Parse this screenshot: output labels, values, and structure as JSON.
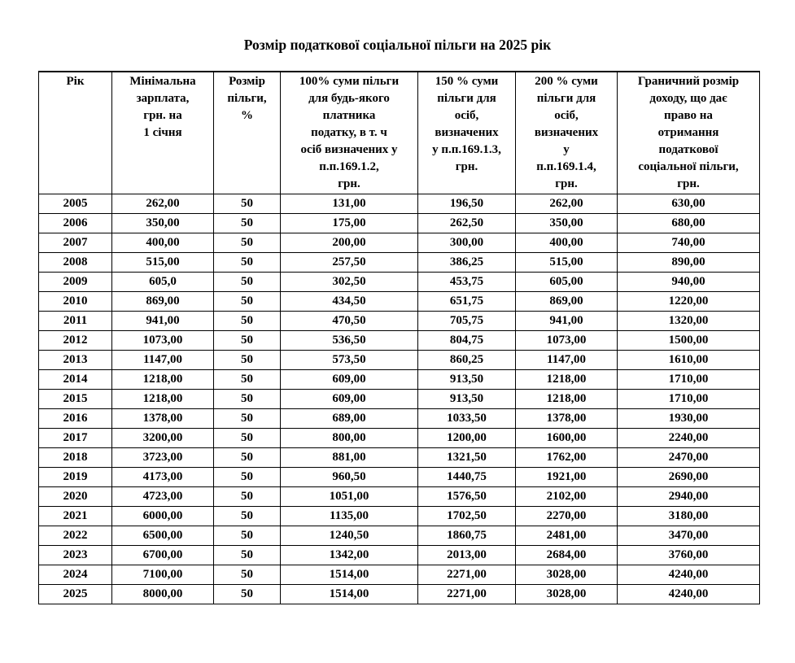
{
  "title": "Розмір податкової соціальної пільги на 2025 рік",
  "table": {
    "headers": [
      "Рік",
      "Мінімальна\nзарплата,\nгрн. на\n1 січня",
      "Розмір\nпільги,\n%",
      "100% суми пільги\nдля будь-якого\nплатника\nподатку, в т. ч\nосіб визначених у\nп.п.169.1.2,\nгрн.",
      "150 % суми\nпільги для\nосіб,\nвизначених\nу п.п.169.1.3,\nгрн.",
      "200 % суми\nпільги для\nосіб,\nвизначених\nу\nп.п.169.1.4,\nгрн.",
      "Граничний розмір\nдоходу, що дає\nправо на\nотримання\nподаткової\nсоціальної пільги,\nгрн."
    ],
    "rows": [
      [
        "2005",
        "262,00",
        "50",
        "131,00",
        "196,50",
        "262,00",
        "630,00"
      ],
      [
        "2006",
        "350,00",
        "50",
        "175,00",
        "262,50",
        "350,00",
        "680,00"
      ],
      [
        "2007",
        "400,00",
        "50",
        "200,00",
        "300,00",
        "400,00",
        "740,00"
      ],
      [
        "2008",
        "515,00",
        "50",
        "257,50",
        "386,25",
        "515,00",
        "890,00"
      ],
      [
        "2009",
        "605,0",
        "50",
        "302,50",
        "453,75",
        "605,00",
        "940,00"
      ],
      [
        "2010",
        "869,00",
        "50",
        "434,50",
        "651,75",
        "869,00",
        "1220,00"
      ],
      [
        "2011",
        "941,00",
        "50",
        "470,50",
        "705,75",
        "941,00",
        "1320,00"
      ],
      [
        "2012",
        "1073,00",
        "50",
        "536,50",
        "804,75",
        "1073,00",
        "1500,00"
      ],
      [
        "2013",
        "1147,00",
        "50",
        "573,50",
        "860,25",
        "1147,00",
        "1610,00"
      ],
      [
        "2014",
        "1218,00",
        "50",
        "609,00",
        "913,50",
        "1218,00",
        "1710,00"
      ],
      [
        "2015",
        "1218,00",
        "50",
        "609,00",
        "913,50",
        "1218,00",
        "1710,00"
      ],
      [
        "2016",
        "1378,00",
        "50",
        "689,00",
        "1033,50",
        "1378,00",
        "1930,00"
      ],
      [
        "2017",
        "3200,00",
        "50",
        "800,00",
        "1200,00",
        "1600,00",
        "2240,00"
      ],
      [
        "2018",
        "3723,00",
        "50",
        "881,00",
        "1321,50",
        "1762,00",
        "2470,00"
      ],
      [
        "2019",
        "4173,00",
        "50",
        "960,50",
        "1440,75",
        "1921,00",
        "2690,00"
      ],
      [
        "2020",
        "4723,00",
        "50",
        "1051,00",
        "1576,50",
        "2102,00",
        "2940,00"
      ],
      [
        "2021",
        "6000,00",
        "50",
        "1135,00",
        "1702,50",
        "2270,00",
        "3180,00"
      ],
      [
        "2022",
        "6500,00",
        "50",
        "1240,50",
        "1860,75",
        "2481,00",
        "3470,00"
      ],
      [
        "2023",
        "6700,00",
        "50",
        "1342,00",
        "2013,00",
        "2684,00",
        "3760,00"
      ],
      [
        "2024",
        "7100,00",
        "50",
        "1514,00",
        "2271,00",
        "3028,00",
        "4240,00"
      ],
      [
        "2025",
        "8000,00",
        "50",
        "1514,00",
        "2271,00",
        "3028,00",
        "4240,00"
      ]
    ]
  }
}
